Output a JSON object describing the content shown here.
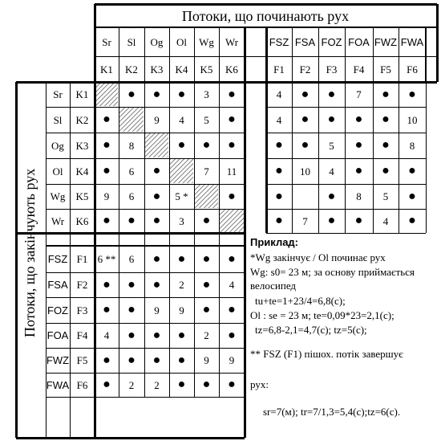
{
  "title_top": "Потоки, що починають рух",
  "title_side": "Потоки, що закінчують рух",
  "vehicle_labels": [
    "Sr",
    "Sl",
    "Og",
    "Ol",
    "Wg",
    "Wr"
  ],
  "vehicle_codes": [
    "K1",
    "K2",
    "K3",
    "K4",
    "K5",
    "K6"
  ],
  "ped_labels": [
    "FSZ",
    "FSA",
    "FOZ",
    "FOA",
    "FWZ",
    "FWA"
  ],
  "ped_codes": [
    "F1",
    "F2",
    "F3",
    "F4",
    "F5",
    "F6"
  ],
  "dot_symbol": "●",
  "grid_upper_left": [
    [
      "H",
      "●",
      "●",
      "●",
      "3",
      "●"
    ],
    [
      "●",
      "H",
      "9",
      "4",
      "5",
      "●"
    ],
    [
      "●",
      "8",
      "H",
      "●",
      "●",
      "●"
    ],
    [
      "●",
      "6",
      "●",
      "H",
      "7",
      "11"
    ],
    [
      "9",
      "6",
      "●",
      "5 *",
      "H",
      "●"
    ],
    [
      "●",
      "●",
      "●",
      "3",
      "●",
      "H"
    ]
  ],
  "grid_upper_right": [
    [
      "4",
      "●",
      "●",
      "7",
      "●",
      "●"
    ],
    [
      "4",
      "●",
      "●",
      "●",
      "●",
      "10"
    ],
    [
      "●",
      "●",
      "5",
      "●",
      "●",
      "8"
    ],
    [
      "●",
      "10",
      "4",
      "●",
      "●",
      "●"
    ],
    [
      "●",
      "",
      "●",
      "8",
      "5",
      "●"
    ],
    [
      "●",
      "7",
      "●",
      "●",
      "4",
      "●"
    ]
  ],
  "grid_lower_left": [
    [
      "6 **",
      "6",
      "●",
      "●",
      "●",
      "●"
    ],
    [
      "●",
      "●",
      "●",
      "2",
      "●",
      "4"
    ],
    [
      "●",
      "●",
      "9",
      "9",
      "●",
      "●"
    ],
    [
      "4",
      "●",
      "●",
      "●",
      "2",
      "●"
    ],
    [
      "●",
      "●",
      "●",
      "●",
      "9",
      "9"
    ],
    [
      "●",
      "2",
      "2",
      "●",
      "●",
      "●"
    ]
  ],
  "example": {
    "heading": "Приклад:",
    "line1": "*Wg закінчує /  Ol починає рух",
    "line2": "Wg: s0= 23 м; за основу приймається",
    "line3": "велосипед",
    "line4": "tu+te=1+23/4=6,8(с);",
    "line5": "Ol : se = 23 м; te=0,09*23=2,1(с);",
    "line6": "tz=6,8-2,1=4,7(с); tz=5(с);",
    "line7": "** FSZ (F1) пішох. потік завершує",
    "line8": "рух:",
    "line9": "sr=7(м); tr=7/1,3=5,4(с);tz=6(с)."
  }
}
